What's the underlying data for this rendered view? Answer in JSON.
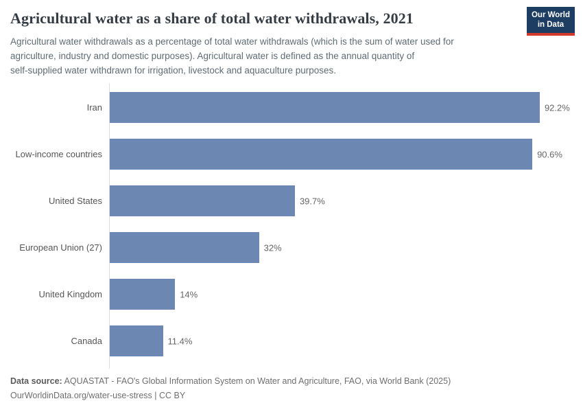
{
  "header": {
    "title": "Agricultural water as a share of total water withdrawals, 2021",
    "subtitle": "Agricultural water withdrawals as a percentage of total water withdrawals (which is the sum of water used for\nagriculture, industry and domestic purposes). Agricultural water is defined as the annual quantity of\nself-supplied water withdrawn for irrigation, livestock and aquaculture purposes.",
    "logo": {
      "line1": "Our World",
      "line2": "in Data",
      "bg_color": "#1d3d63",
      "accent_color": "#d23a2b"
    }
  },
  "chart_data": {
    "type": "bar",
    "orientation": "horizontal",
    "title": "Agricultural water as a share of total water withdrawals, 2021",
    "xlabel": "",
    "ylabel": "",
    "xlim": [
      0,
      100
    ],
    "grid": false,
    "legend": false,
    "bar_color": "#6d87b3",
    "axis_color": "#dddddd",
    "categories": [
      "Iran",
      "Low-income countries",
      "United States",
      "European Union (27)",
      "United Kingdom",
      "Canada"
    ],
    "values": [
      92.2,
      90.6,
      39.7,
      32,
      14,
      11.4
    ],
    "value_labels": [
      "92.2%",
      "90.6%",
      "39.7%",
      "32%",
      "14%",
      "11.4%"
    ]
  },
  "footer": {
    "source_label": "Data source:",
    "source_text": " AQUASTAT - FAO's Global Information System on Water and Agriculture, FAO, via World Bank (2025)",
    "license_text": "OurWorldinData.org/water-use-stress | CC BY"
  }
}
